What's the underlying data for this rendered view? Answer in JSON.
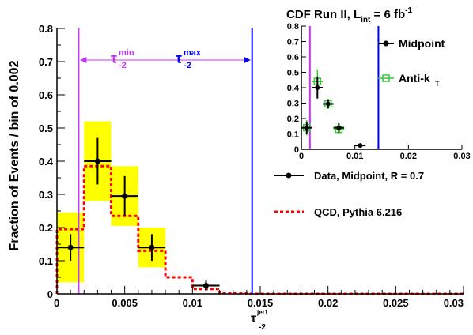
{
  "chart_data": {
    "type": "histogram",
    "title": {
      "main": "CDF Run II, L",
      "sub": "int",
      "mid": " = 6 fb",
      "sup": "-1"
    },
    "xlabel": {
      "main": "τ",
      "sub": "-2",
      "sup": "jet1"
    },
    "ylabel": "Fraction of Events / bin of 0.002",
    "xlim": [
      0,
      0.03
    ],
    "ylim": [
      0,
      0.8
    ],
    "x_ticks": [
      "0",
      "0.005",
      "0.01",
      "0.015",
      "0.02",
      "0.025",
      "0.03"
    ],
    "y_ticks": [
      "0",
      "0.1",
      "0.2",
      "0.3",
      "0.4",
      "0.5",
      "0.6",
      "0.7",
      "0.8"
    ],
    "bin_width": 0.002,
    "data_midpoint": {
      "name": "Data, Midpoint, R = 0.7",
      "points": [
        {
          "x": 0.001,
          "y": 0.14,
          "yerr": 0.04,
          "sys": 0.105
        },
        {
          "x": 0.003,
          "y": 0.4,
          "yerr": 0.07,
          "sys": 0.12
        },
        {
          "x": 0.005,
          "y": 0.295,
          "yerr": 0.06,
          "sys": 0.09
        },
        {
          "x": 0.007,
          "y": 0.14,
          "yerr": 0.04,
          "sys": 0.06
        },
        {
          "x": 0.011,
          "y": 0.025,
          "yerr": 0.015,
          "sys": 0
        }
      ]
    },
    "qcd": {
      "name": "QCD, Pythia 6.216",
      "edges": [
        0,
        0.002,
        0.004,
        0.006,
        0.008,
        0.01,
        0.012,
        0.014,
        0.016,
        0.018,
        0.02,
        0.022,
        0.024,
        0.026,
        0.028,
        0.03
      ],
      "values": [
        0.195,
        0.385,
        0.235,
        0.13,
        0.05,
        0.015,
        0.002,
        0,
        0,
        0,
        0,
        0,
        0,
        0,
        0
      ]
    },
    "tau_min": {
      "x": 0.0016,
      "label": "τ",
      "sub": "-2",
      "sup": "min",
      "color": "#cc33ff"
    },
    "tau_max": {
      "x": 0.0144,
      "label": "τ",
      "sub": "-2",
      "sup": "max",
      "color": "#0000ff"
    },
    "inset": {
      "xlim": [
        0,
        0.03
      ],
      "ylim": [
        0,
        0.8
      ],
      "x_ticks": [
        "0",
        "0.01",
        "0.02",
        "0.03"
      ],
      "y_ticks": [
        "0",
        "0.1",
        "0.2",
        "0.3",
        "0.4",
        "0.5",
        "0.6",
        "0.7",
        "0.8"
      ],
      "midpoint": {
        "name": "Midpoint",
        "points": [
          {
            "x": 0.001,
            "y": 0.14,
            "yerr": 0.04
          },
          {
            "x": 0.003,
            "y": 0.4,
            "yerr": 0.07
          },
          {
            "x": 0.005,
            "y": 0.295,
            "yerr": 0.03
          },
          {
            "x": 0.007,
            "y": 0.14,
            "yerr": 0.03
          },
          {
            "x": 0.011,
            "y": 0.025,
            "yerr": 0.01
          }
        ]
      },
      "antikt": {
        "name": "Anti-k",
        "sub": "T",
        "points": [
          {
            "x": 0.001,
            "y": 0.14,
            "yerr": 0.05
          },
          {
            "x": 0.003,
            "y": 0.44,
            "yerr": 0.08
          },
          {
            "x": 0.005,
            "y": 0.295,
            "yerr": 0.03
          },
          {
            "x": 0.007,
            "y": 0.13,
            "yerr": 0.03
          }
        ]
      }
    },
    "colors": {
      "data": "#000000",
      "qcd": "#ff0000",
      "sys_band": "#ffff00",
      "antikt": "#33cc33"
    }
  }
}
